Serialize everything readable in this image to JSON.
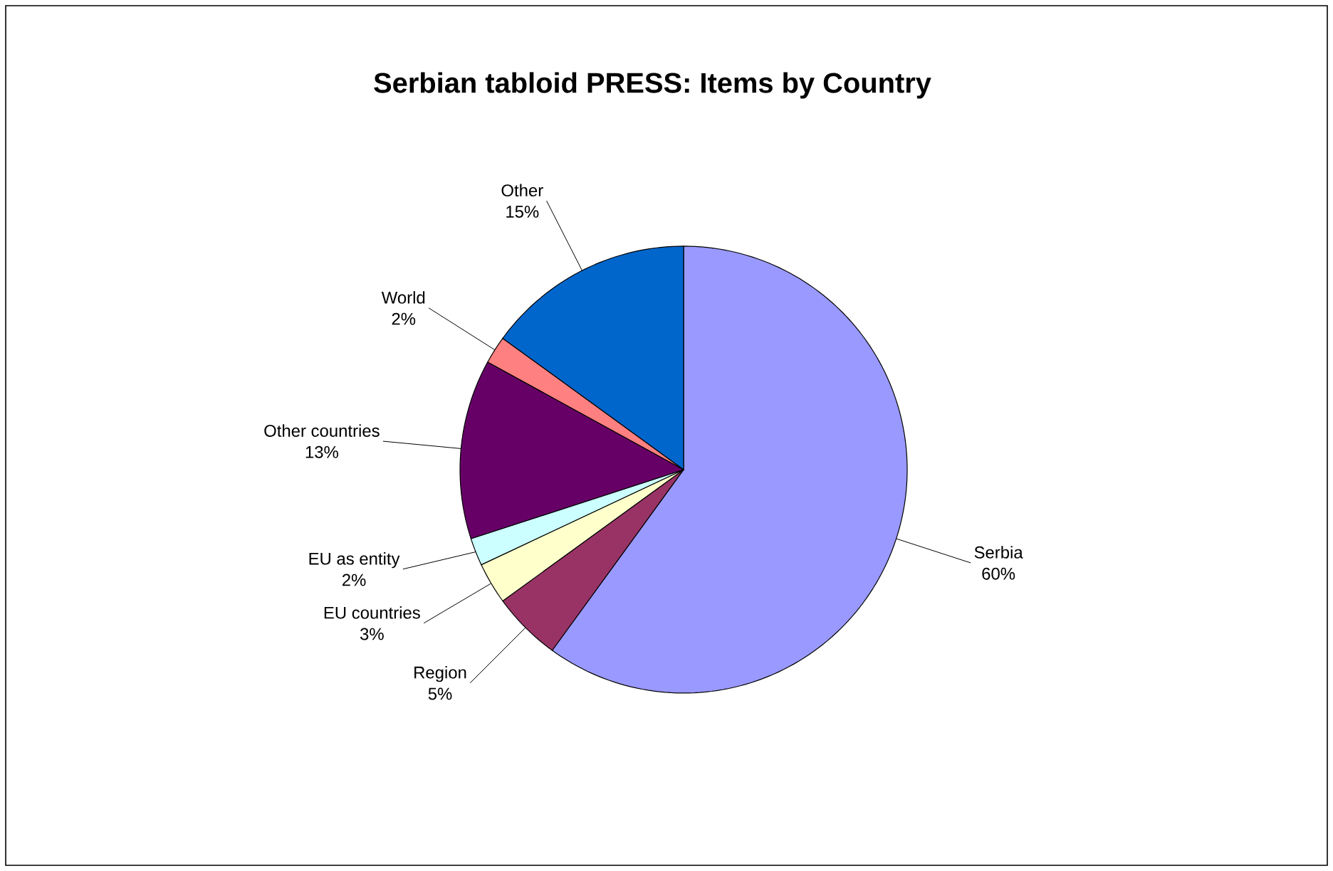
{
  "chart_data": {
    "type": "pie",
    "title": "Serbian tabloid PRESS: Items by Country",
    "categories": [
      "Serbia",
      "Region",
      "EU countries",
      "EU as entity",
      "Other countries",
      "World",
      "Other"
    ],
    "values": [
      60,
      5,
      3,
      2,
      13,
      2,
      15
    ],
    "value_labels": [
      "60%",
      "5%",
      "3%",
      "2%",
      "13%",
      "2%",
      "15%"
    ],
    "colors": [
      "#9999ff",
      "#993366",
      "#ffffcc",
      "#ccffff",
      "#660066",
      "#ff8080",
      "#0066cc"
    ]
  }
}
